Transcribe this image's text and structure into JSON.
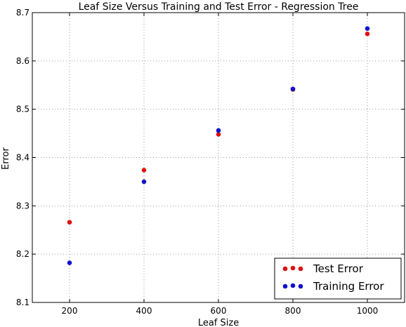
{
  "chart_data": {
    "type": "scatter",
    "title": "Leaf Size Versus Training and Test Error - Regression Tree",
    "xlabel": "Leaf Size",
    "ylabel": "Error",
    "xlim": [
      100,
      1100
    ],
    "ylim": [
      8.1,
      8.7
    ],
    "x_ticks": [
      200,
      400,
      600,
      800,
      1000
    ],
    "x_tick_labels": [
      "200",
      "400",
      "600",
      "800",
      "1000"
    ],
    "y_ticks": [
      8.1,
      8.2,
      8.3,
      8.4,
      8.5,
      8.6,
      8.7
    ],
    "y_tick_labels": [
      "8.1",
      "8.2",
      "8.3",
      "8.4",
      "8.5",
      "8.6",
      "8.7"
    ],
    "grid": true,
    "legend_position": "bottom-right",
    "series": [
      {
        "name": "Test Error",
        "color": "#dd1111",
        "x": [
          200,
          400,
          600,
          800,
          1000
        ],
        "y": [
          8.266,
          8.374,
          8.448,
          8.541,
          8.656
        ]
      },
      {
        "name": "Training Error",
        "color": "#1111cc",
        "x": [
          200,
          400,
          600,
          800,
          1000
        ],
        "y": [
          8.182,
          8.35,
          8.456,
          8.542,
          8.667
        ]
      }
    ]
  }
}
